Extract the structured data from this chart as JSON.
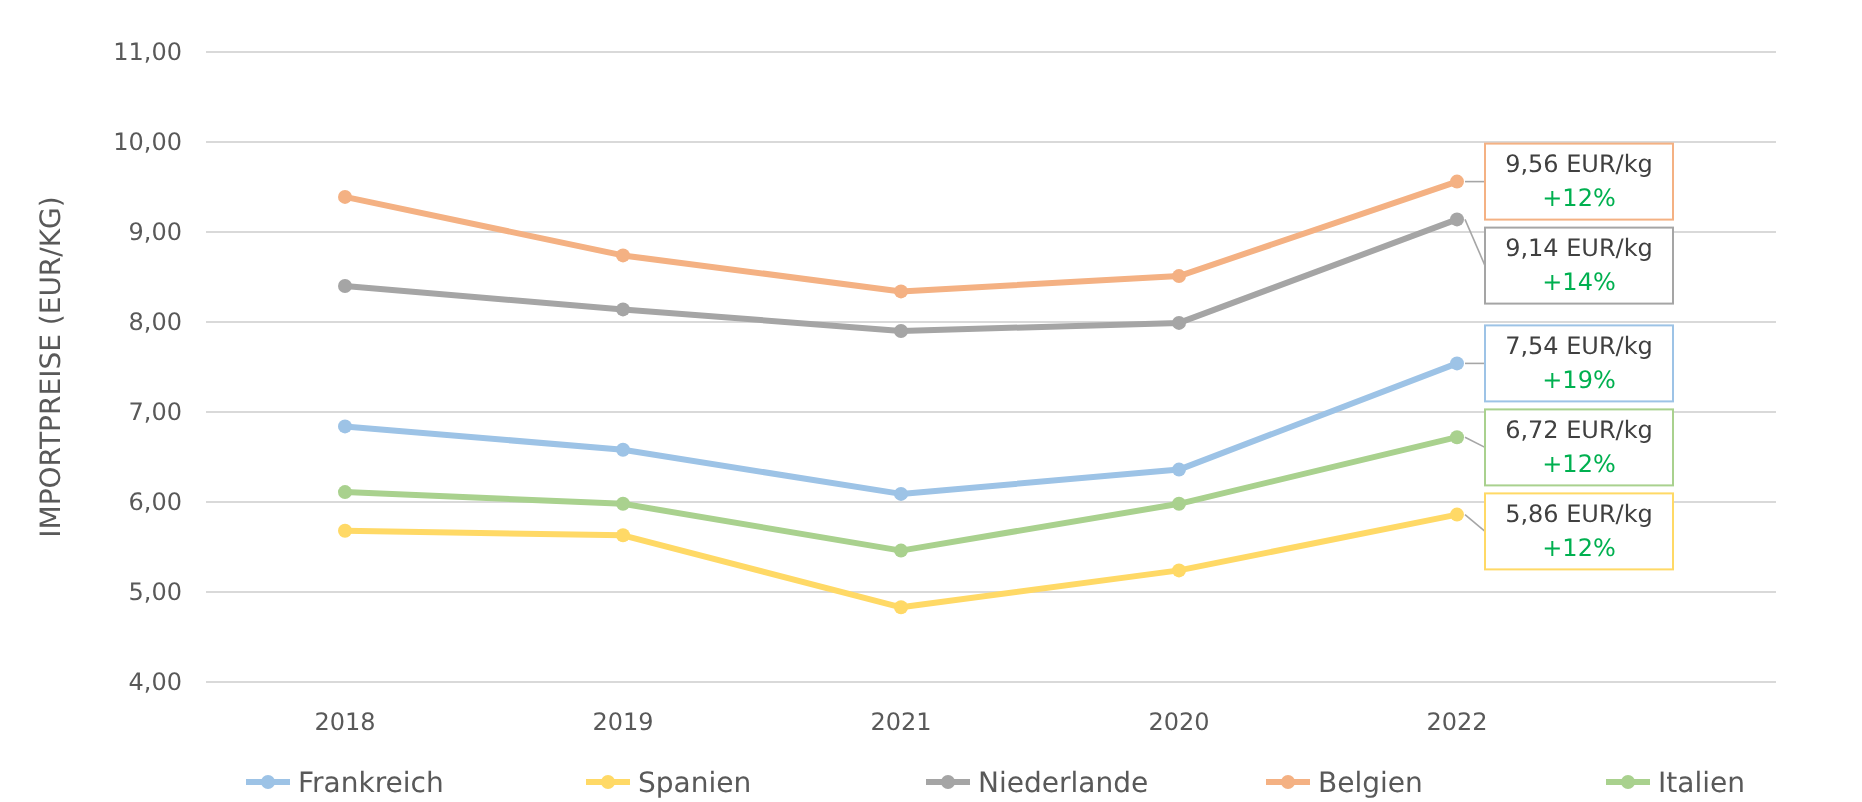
{
  "chart_data": {
    "type": "line",
    "ylabel": "IMPORTPREISE (EUR/KG)",
    "categories": [
      "2018",
      "2019",
      "2021",
      "2020",
      "2022"
    ],
    "ylim": [
      4,
      11
    ],
    "yticks": [
      {
        "value": 4,
        "label": "4,00"
      },
      {
        "value": 5,
        "label": "5,00"
      },
      {
        "value": 6,
        "label": "6,00"
      },
      {
        "value": 7,
        "label": "7,00"
      },
      {
        "value": 8,
        "label": "8,00"
      },
      {
        "value": 9,
        "label": "9,00"
      },
      {
        "value": 10,
        "label": "10,00"
      },
      {
        "value": 11,
        "label": "11,00"
      }
    ],
    "grid": "y",
    "legend": "bottom",
    "marker": "circle",
    "line_style": "solid",
    "series": [
      {
        "name": "Frankreich",
        "color": "#9dc3e6",
        "values": [
          6.84,
          6.58,
          6.09,
          6.36,
          7.54
        ],
        "value_labels": [
          null,
          null,
          null,
          null,
          "7,54 EUR/kg\n+19%"
        ]
      },
      {
        "name": "Spanien",
        "color": "#ffd966",
        "values": [
          5.68,
          5.63,
          4.83,
          5.24,
          5.86
        ],
        "value_labels": [
          null,
          null,
          null,
          null,
          "5,86 EUR/kg\n+12%"
        ]
      },
      {
        "name": "Niederlande",
        "color": "#a5a5a5",
        "values": [
          8.4,
          8.14,
          7.9,
          7.99,
          9.14
        ],
        "value_labels": [
          null,
          null,
          null,
          null,
          "9,14 EUR/kg\n+14%"
        ]
      },
      {
        "name": "Belgien",
        "color": "#f4b183",
        "values": [
          9.39,
          8.74,
          8.34,
          8.51,
          9.56
        ],
        "value_labels": [
          null,
          null,
          null,
          null,
          "9,56 EUR/kg\n+12%"
        ]
      },
      {
        "name": "Italien",
        "color": "#a9d18e",
        "values": [
          6.11,
          5.98,
          5.46,
          5.98,
          6.72
        ],
        "value_labels": [
          null,
          null,
          null,
          null,
          "6,72 EUR/kg\n+12%"
        ]
      }
    ]
  }
}
